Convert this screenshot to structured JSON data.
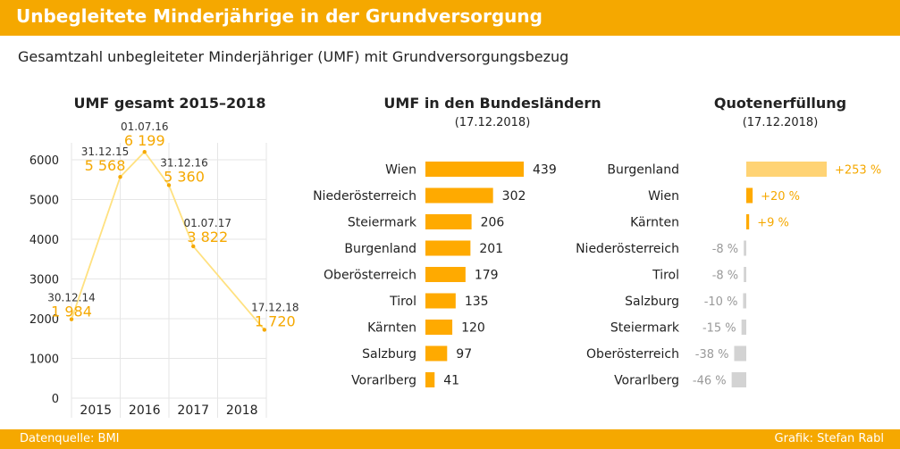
{
  "header": {
    "title": "Unbegleitete Minderjährige in der Grundversorgung"
  },
  "subtitle": "Gesamtzahl unbegleiteter Minderjähriger (UMF) mit Grundversorgungsbezug",
  "footer": {
    "source": "Datenquelle: BMI",
    "credit": "Grafik: Stefan Rabl"
  },
  "colors": {
    "accent": "#f5a800",
    "bar": "#ffaa00",
    "line": "#ffe180",
    "grey": "#d3d3d3",
    "positive_light": "#ffd374",
    "label": "#f5a800"
  },
  "chart_data": [
    {
      "type": "line",
      "title": "UMF gesamt 2015–2018",
      "xlabel": "",
      "ylabel": "",
      "ylim": [
        0,
        6500
      ],
      "yticks": [
        0,
        1000,
        2000,
        3000,
        4000,
        5000,
        6000
      ],
      "xticks": [
        "2015",
        "2016",
        "2017",
        "2018"
      ],
      "grid": true,
      "points": [
        {
          "date": "30.12.14",
          "value": 1984,
          "value_label": "1 984",
          "t": 0.0
        },
        {
          "date": "31.12.15",
          "value": 5568,
          "value_label": "5 568",
          "t": 1.0
        },
        {
          "date": "01.07.16",
          "value": 6199,
          "value_label": "6 199",
          "t": 1.5
        },
        {
          "date": "31.12.16",
          "value": 5360,
          "value_label": "5 360",
          "t": 2.0
        },
        {
          "date": "01.07.17",
          "value": 3822,
          "value_label": "3 822",
          "t": 2.5
        },
        {
          "date": "17.12.18",
          "value": 1720,
          "value_label": "1 720",
          "t": 3.96
        }
      ]
    },
    {
      "type": "bar",
      "title": "UMF in den Bundesländern",
      "subtitle": "(17.12.2018)",
      "categories": [
        "Wien",
        "Niederösterreich",
        "Steiermark",
        "Burgenland",
        "Oberösterreich",
        "Tirol",
        "Kärnten",
        "Salzburg",
        "Vorarlberg"
      ],
      "values": [
        439,
        302,
        206,
        201,
        179,
        135,
        120,
        97,
        41
      ]
    },
    {
      "type": "bar",
      "title": "Quotenerfüllung",
      "subtitle": "(17.12.2018)",
      "categories": [
        "Burgenland",
        "Wien",
        "Kärnten",
        "Niederösterreich",
        "Tirol",
        "Salzburg",
        "Steiermark",
        "Oberösterreich",
        "Vorarlberg"
      ],
      "values": [
        253,
        20,
        9,
        -8,
        -8,
        -10,
        -15,
        -38,
        -46
      ],
      "labels": [
        "+253 %",
        "+20 %",
        "+9 %",
        "-8 %",
        "-8 %",
        "-10 %",
        "-15 %",
        "-38 %",
        "-46 %"
      ]
    }
  ]
}
